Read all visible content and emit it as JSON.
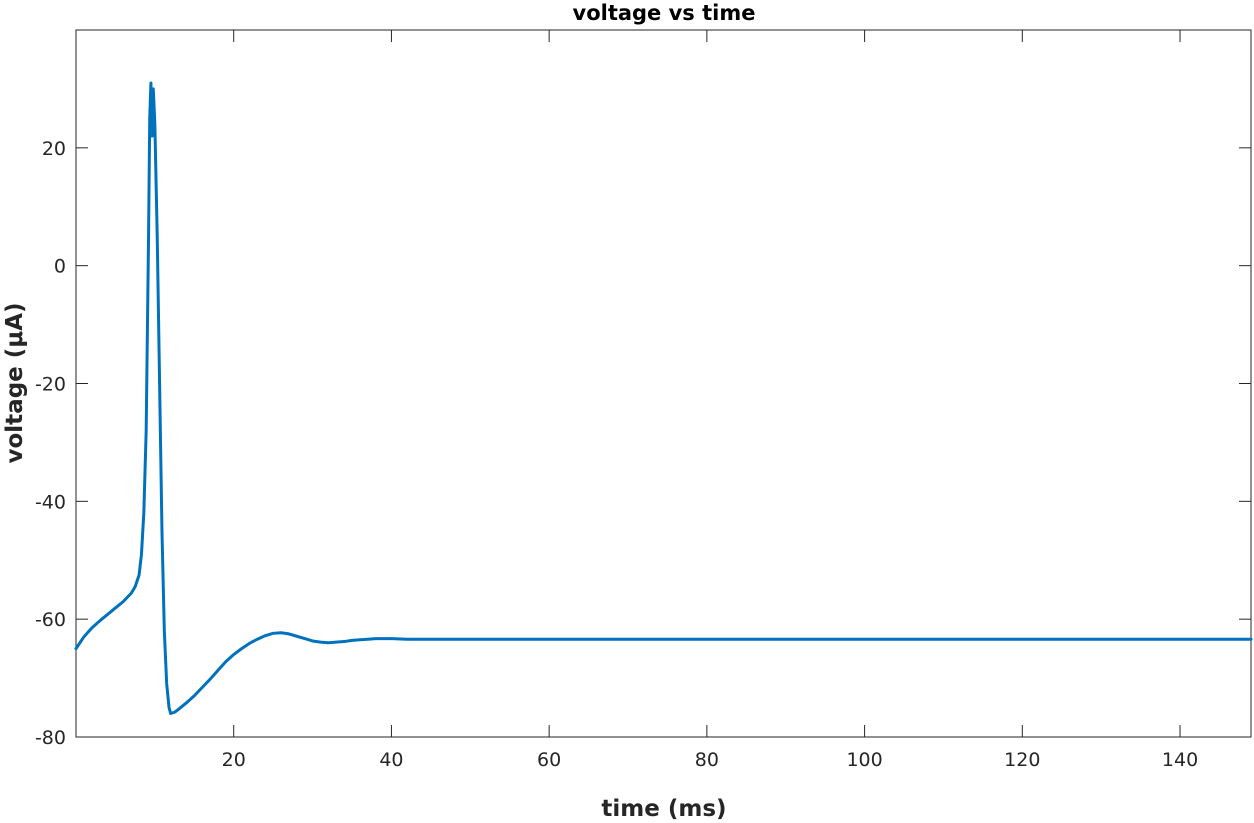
{
  "chart_data": {
    "type": "line",
    "title": "voltage vs time",
    "xlabel": "time (ms)",
    "ylabel": "voltage (μA)",
    "xlim": [
      0,
      149
    ],
    "ylim": [
      -80,
      40
    ],
    "x_ticks": [
      20,
      40,
      60,
      80,
      100,
      120,
      140
    ],
    "y_ticks": [
      -80,
      -60,
      -40,
      -20,
      0,
      20
    ],
    "grid": false,
    "legend": "none",
    "line_color": "#0072BD",
    "series": [
      {
        "x": [
          0,
          1,
          2,
          3,
          4,
          5,
          6,
          7,
          7.5,
          8,
          8.3,
          8.6,
          8.9,
          9.2,
          9.35,
          9.5,
          9.65,
          9.8,
          10.0,
          10.3,
          10.6,
          10.9,
          11.2,
          11.5,
          11.8,
          12.0,
          12.5,
          13,
          14,
          15,
          16,
          17,
          18,
          19,
          20,
          21,
          22,
          23,
          24,
          25,
          26,
          27,
          28,
          29,
          30,
          31,
          32,
          33,
          34,
          35,
          36,
          37,
          38,
          39,
          40,
          42,
          45,
          50,
          60,
          80,
          100,
          120,
          140,
          149
        ],
        "y": [
          -65,
          -63,
          -61.5,
          -60.3,
          -59.2,
          -58.1,
          -57,
          -55.6,
          -54.5,
          -52.5,
          -49,
          -42,
          -28,
          5,
          25,
          31,
          22,
          30,
          24,
          5,
          -20,
          -45,
          -62,
          -71,
          -75,
          -76,
          -75.8,
          -75.3,
          -74.2,
          -73,
          -71.6,
          -70.2,
          -68.7,
          -67.2,
          -66,
          -65,
          -64.1,
          -63.4,
          -62.8,
          -62.4,
          -62.3,
          -62.5,
          -62.9,
          -63.3,
          -63.7,
          -63.9,
          -64,
          -63.9,
          -63.8,
          -63.6,
          -63.5,
          -63.4,
          -63.3,
          -63.3,
          -63.3,
          -63.4,
          -63.4,
          -63.4,
          -63.4,
          -63.4,
          -63.4,
          -63.4,
          -63.4,
          -63.4
        ]
      }
    ]
  }
}
